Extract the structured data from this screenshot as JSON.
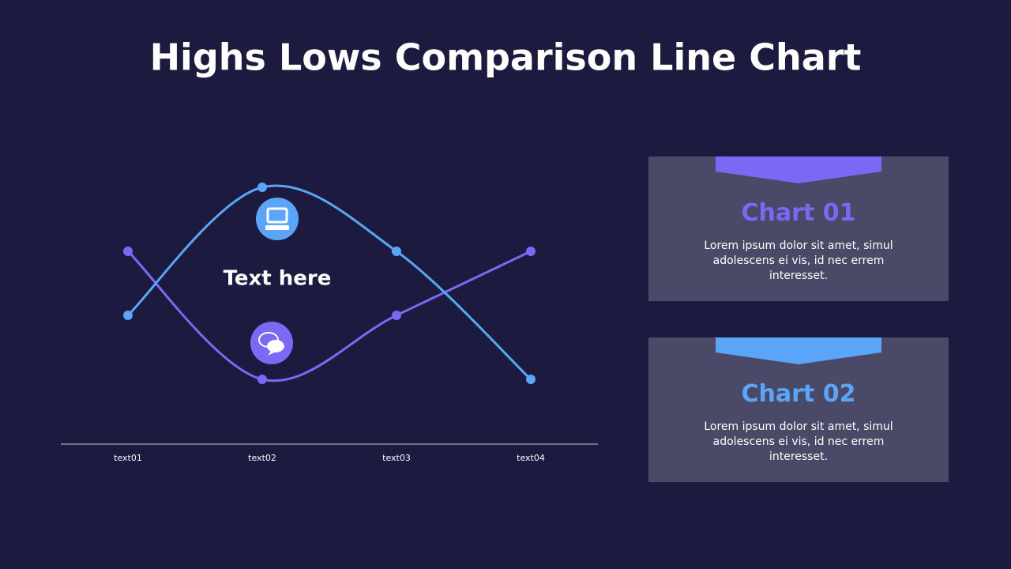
{
  "chart_data": {
    "type": "line",
    "title": "Highs Lows Comparison Line Chart",
    "annotation": "Text here",
    "categories": [
      "text01",
      "text02",
      "text03",
      "text04"
    ],
    "series": [
      {
        "name": "Chart 01",
        "color": "#7b68f5",
        "values": [
          3,
          1,
          2,
          3
        ],
        "description": "Lorem ipsum dolor sit amet, simul adolescens ei vis, id nec errem  interesset."
      },
      {
        "name": "Chart 02",
        "color": "#5aa5f7",
        "values": [
          2,
          4,
          3,
          1
        ],
        "description": "Lorem ipsum dolor sit amet, simul adolescens ei vis, id nec errem  interesset."
      }
    ],
    "ylim": [
      0,
      5
    ],
    "smooth": true
  }
}
